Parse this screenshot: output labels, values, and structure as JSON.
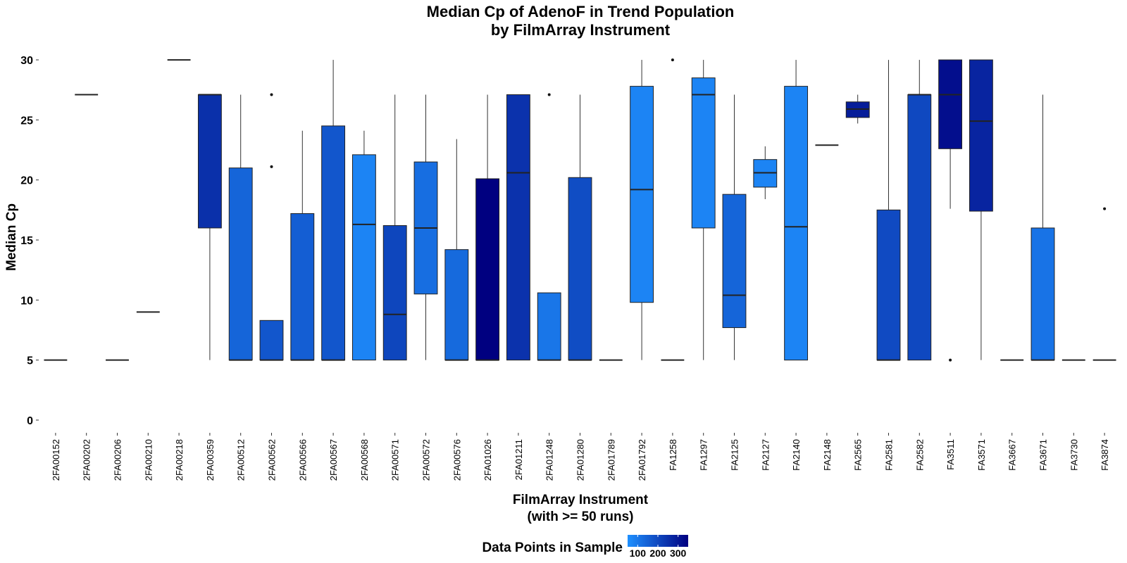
{
  "chart_data": {
    "type": "boxplot",
    "title": "Median Cp of AdenoF in Trend Population",
    "subtitle": "by FilmArray Instrument",
    "xlabel": "FilmArray Instrument",
    "xlabel_sub": "(with >= 50 runs)",
    "ylabel": "Median Cp",
    "ylim": [
      -1,
      31
    ],
    "yticks": [
      0,
      5,
      10,
      15,
      20,
      25,
      30
    ],
    "grid": false,
    "legend": {
      "title": "Data Points in Sample",
      "placement": "bottom",
      "ticks": [
        100,
        200,
        300
      ],
      "range": [
        50,
        350
      ],
      "color_low": "#1E90FF",
      "color_high": "#000080"
    },
    "boxes": [
      {
        "cat": "2FA00152",
        "min": 5,
        "q1": 5,
        "median": 5,
        "q3": 5,
        "max": 5,
        "outliers": [],
        "n": 100
      },
      {
        "cat": "2FA00202",
        "min": 27.1,
        "q1": 27.1,
        "median": 27.1,
        "q3": 27.1,
        "max": 27.1,
        "outliers": [],
        "n": 100
      },
      {
        "cat": "2FA00206",
        "min": 5,
        "q1": 5,
        "median": 5,
        "q3": 5,
        "max": 5,
        "outliers": [],
        "n": 100
      },
      {
        "cat": "2FA00210",
        "min": 9,
        "q1": 9,
        "median": 9,
        "q3": 9,
        "max": 9,
        "outliers": [],
        "n": 100
      },
      {
        "cat": "2FA00218",
        "min": 30,
        "q1": 30,
        "median": 30,
        "q3": 30,
        "max": 30,
        "outliers": [],
        "n": 100
      },
      {
        "cat": "2FA00359",
        "min": 5,
        "q1": 16,
        "median": 27.1,
        "q3": 27.1,
        "max": 27.1,
        "outliers": [],
        "n": 250
      },
      {
        "cat": "2FA00512",
        "min": 5,
        "q1": 5,
        "median": 5,
        "q3": 21,
        "max": 27.1,
        "outliers": [],
        "n": 140
      },
      {
        "cat": "2FA00562",
        "min": 5,
        "q1": 5,
        "median": 5,
        "q3": 8.3,
        "max": 8.3,
        "outliers": [
          21.1,
          27.1
        ],
        "n": 170
      },
      {
        "cat": "2FA00566",
        "min": 5,
        "q1": 5,
        "median": 5,
        "q3": 17.2,
        "max": 24.1,
        "outliers": [],
        "n": 155
      },
      {
        "cat": "2FA00567",
        "min": 5,
        "q1": 5,
        "median": 5,
        "q3": 24.5,
        "max": 30,
        "outliers": [],
        "n": 170
      },
      {
        "cat": "2FA00568",
        "min": 5,
        "q1": 5,
        "median": 16.3,
        "q3": 22.1,
        "max": 24.1,
        "outliers": [],
        "n": 75
      },
      {
        "cat": "2FA00571",
        "min": 5,
        "q1": 5,
        "median": 8.8,
        "q3": 16.2,
        "max": 27.1,
        "outliers": [],
        "n": 205
      },
      {
        "cat": "2FA00572",
        "min": 5,
        "q1": 10.5,
        "median": 16,
        "q3": 21.5,
        "max": 27.1,
        "outliers": [],
        "n": 120
      },
      {
        "cat": "2FA00576",
        "min": 5,
        "q1": 5,
        "median": 5,
        "q3": 14.2,
        "max": 23.4,
        "outliers": [],
        "n": 130
      },
      {
        "cat": "2FA01026",
        "min": 5,
        "q1": 5,
        "median": 5,
        "q3": 20.1,
        "max": 27.1,
        "outliers": [],
        "n": 350
      },
      {
        "cat": "2FA01211",
        "min": 5,
        "q1": 5,
        "median": 20.6,
        "q3": 27.1,
        "max": 27.1,
        "outliers": [],
        "n": 245
      },
      {
        "cat": "2FA01248",
        "min": 5,
        "q1": 5,
        "median": 5,
        "q3": 10.6,
        "max": 10.6,
        "outliers": [
          27.1
        ],
        "n": 105
      },
      {
        "cat": "2FA01280",
        "min": 5,
        "q1": 5,
        "median": 5,
        "q3": 20.2,
        "max": 27.1,
        "outliers": [],
        "n": 190
      },
      {
        "cat": "2FA01789",
        "min": 5,
        "q1": 5,
        "median": 5,
        "q3": 5,
        "max": 5,
        "outliers": [],
        "n": 100
      },
      {
        "cat": "2FA01792",
        "min": 5,
        "q1": 9.8,
        "median": 19.2,
        "q3": 27.8,
        "max": 30,
        "outliers": [],
        "n": 75
      },
      {
        "cat": "FA1258",
        "min": 5,
        "q1": 5,
        "median": 5,
        "q3": 5,
        "max": 5,
        "outliers": [
          30
        ],
        "n": 100
      },
      {
        "cat": "FA1297",
        "min": 5,
        "q1": 16,
        "median": 27.1,
        "q3": 28.5,
        "max": 30,
        "outliers": [],
        "n": 75
      },
      {
        "cat": "FA2125",
        "min": 5,
        "q1": 7.7,
        "median": 10.4,
        "q3": 18.8,
        "max": 27.1,
        "outliers": [],
        "n": 140
      },
      {
        "cat": "FA2127",
        "min": 18.4,
        "q1": 19.4,
        "median": 20.6,
        "q3": 21.7,
        "max": 22.8,
        "outliers": [],
        "n": 75
      },
      {
        "cat": "FA2140",
        "min": 5,
        "q1": 5,
        "median": 16.1,
        "q3": 27.8,
        "max": 30,
        "outliers": [],
        "n": 75
      },
      {
        "cat": "FA2148",
        "min": 22.9,
        "q1": 22.9,
        "median": 22.9,
        "q3": 22.9,
        "max": 22.9,
        "outliers": [],
        "n": 100
      },
      {
        "cat": "FA2565",
        "min": 24.7,
        "q1": 25.2,
        "median": 25.9,
        "q3": 26.5,
        "max": 27.1,
        "outliers": [],
        "n": 290
      },
      {
        "cat": "FA2581",
        "min": 5,
        "q1": 5,
        "median": 5,
        "q3": 17.5,
        "max": 30,
        "outliers": [],
        "n": 195
      },
      {
        "cat": "FA2582",
        "min": 5,
        "q1": 5,
        "median": 27.1,
        "q3": 27.1,
        "max": 30,
        "outliers": [],
        "n": 200
      },
      {
        "cat": "FA3511",
        "min": 17.6,
        "q1": 22.6,
        "median": 27.1,
        "q3": 30,
        "max": 30,
        "outliers": [
          5
        ],
        "n": 320
      },
      {
        "cat": "FA3571",
        "min": 5,
        "q1": 17.4,
        "median": 24.9,
        "q3": 30,
        "max": 30,
        "outliers": [],
        "n": 275
      },
      {
        "cat": "FA3667",
        "min": 5,
        "q1": 5,
        "median": 5,
        "q3": 5,
        "max": 5,
        "outliers": [],
        "n": 100
      },
      {
        "cat": "FA3671",
        "min": 5,
        "q1": 5,
        "median": 5,
        "q3": 16,
        "max": 27.1,
        "outliers": [],
        "n": 110
      },
      {
        "cat": "FA3730",
        "min": 5,
        "q1": 5,
        "median": 5,
        "q3": 5,
        "max": 5,
        "outliers": [],
        "n": 100
      },
      {
        "cat": "FA3874",
        "min": 5,
        "q1": 5,
        "median": 5,
        "q3": 5,
        "max": 5,
        "outliers": [
          17.6
        ],
        "n": 100
      }
    ]
  }
}
